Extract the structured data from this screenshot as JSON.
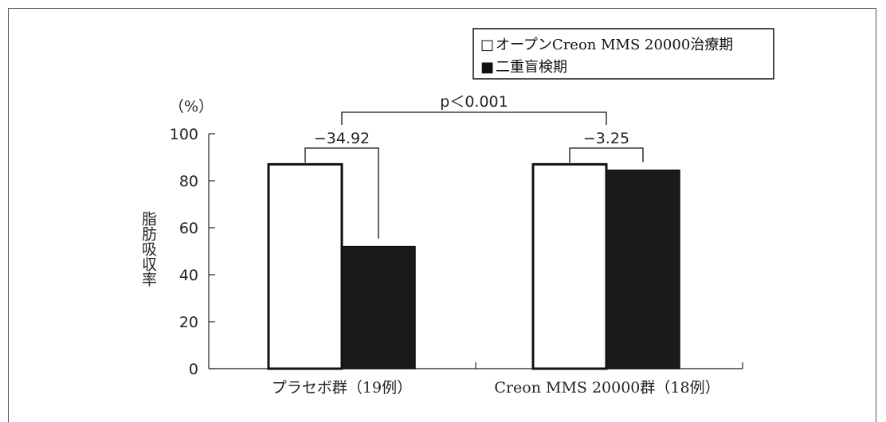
{
  "chart_data": {
    "type": "bar",
    "categories": [
      "プラセボ群（19例）",
      "Creon MMS 20000群（18例）"
    ],
    "series": [
      {
        "name": "オープンCreon MMS 20000治療期",
        "values": [
          87,
          87
        ],
        "color": "#ffffff"
      },
      {
        "name": "二重盲検期",
        "values": [
          52,
          84.5
        ],
        "color": "#1a1a1a"
      }
    ],
    "ylabel": "脂肪吸収率",
    "yunit": "（%）",
    "ylim": [
      0,
      100
    ],
    "yticks": [
      "0",
      "20",
      "40",
      "60",
      "80",
      "100"
    ],
    "differences": [
      "−34.92",
      "−3.25"
    ],
    "pvalue": "p＜0.001",
    "legend_position": "top-right",
    "legend_markers": [
      "□",
      "■"
    ]
  }
}
